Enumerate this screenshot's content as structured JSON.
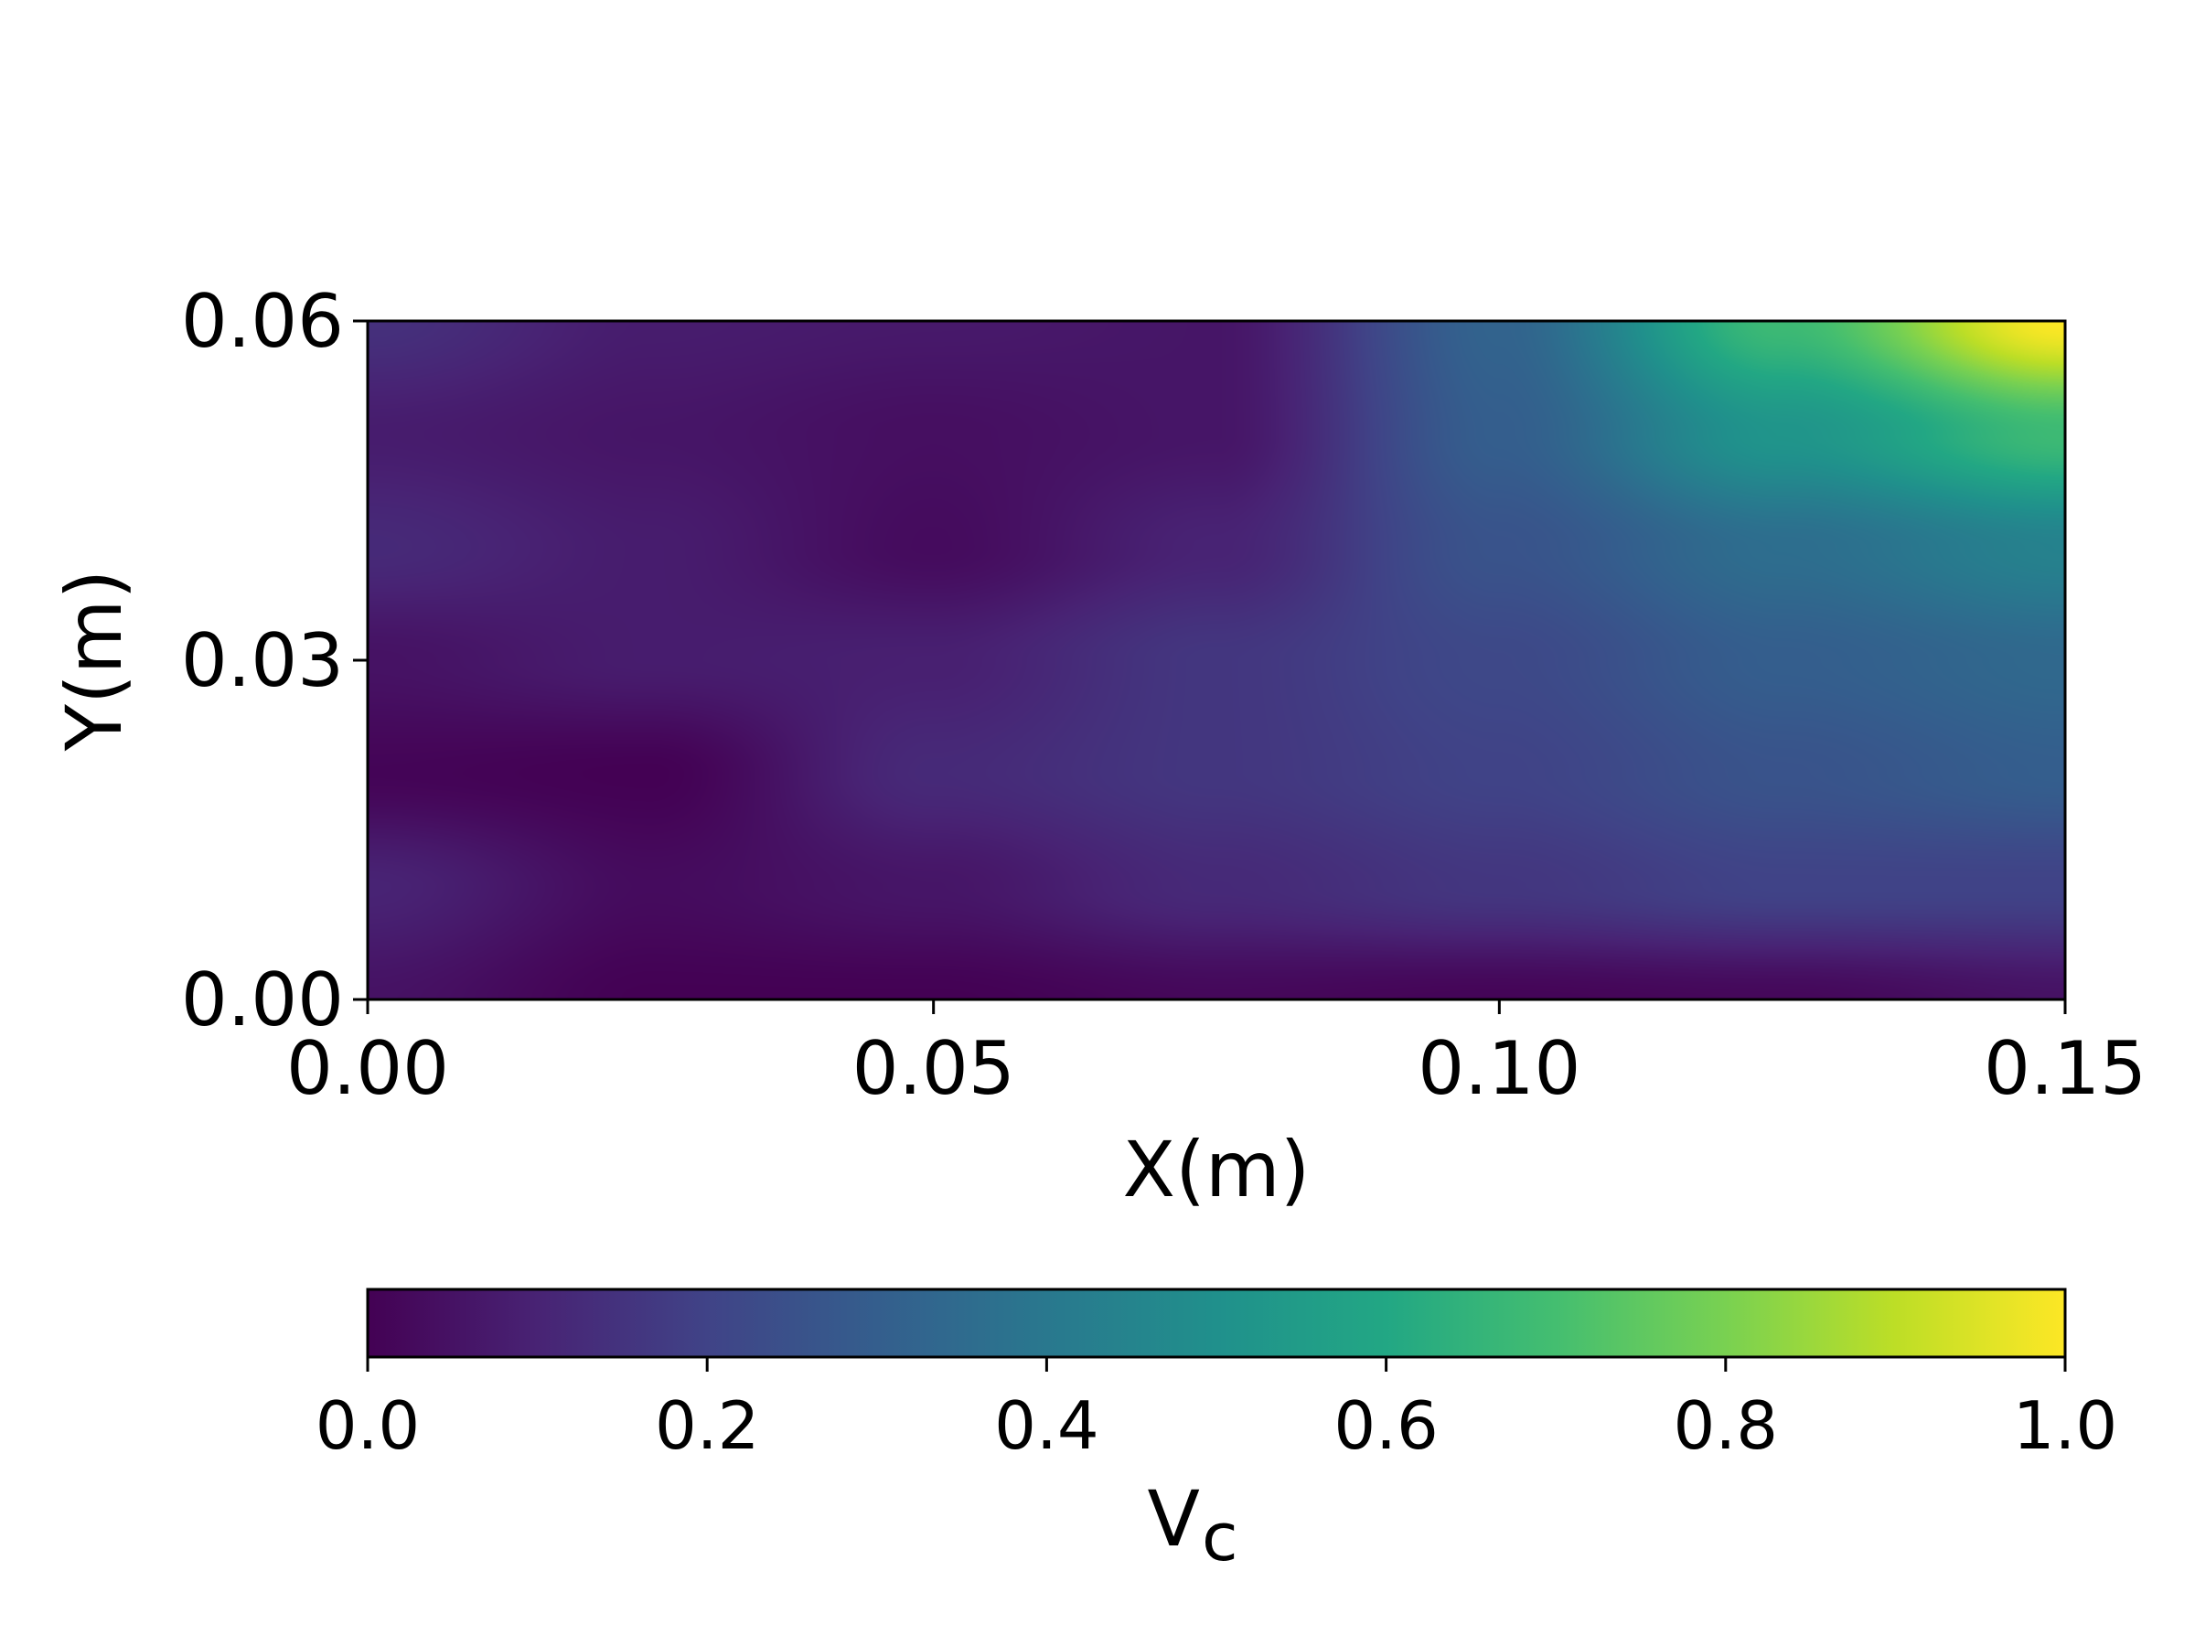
{
  "chart_data": {
    "type": "heatmap",
    "title": "",
    "xlabel": "X(m)",
    "ylabel": "Y(m)",
    "xlim": [
      0.0,
      0.15
    ],
    "ylim": [
      0.0,
      0.06
    ],
    "xticks": [
      0.0,
      0.05,
      0.1,
      0.15
    ],
    "xtick_labels": [
      "0.00",
      "0.05",
      "0.10",
      "0.15"
    ],
    "yticks": [
      0.0,
      0.03,
      0.06
    ],
    "ytick_labels": [
      "0.00",
      "0.03",
      "0.06"
    ],
    "colormap": "viridis",
    "colorbar": {
      "orientation": "horizontal",
      "placement": "bottom",
      "label_main": "V",
      "label_sub": "c",
      "range": [
        0.0,
        1.0
      ],
      "ticks": [
        0.0,
        0.2,
        0.4,
        0.6,
        0.8,
        1.0
      ],
      "tick_labels": [
        "0.0",
        "0.2",
        "0.4",
        "0.6",
        "0.8",
        "1.0"
      ]
    },
    "x": [
      0.0,
      0.025,
      0.05,
      0.075,
      0.1,
      0.125,
      0.15
    ],
    "y": [
      0.0,
      0.01,
      0.02,
      0.03,
      0.04,
      0.05,
      0.06
    ],
    "z": [
      [
        0.05,
        0.0,
        0.0,
        0.02,
        0.01,
        0.02,
        0.05
      ],
      [
        0.1,
        0.03,
        0.06,
        0.12,
        0.16,
        0.2,
        0.2
      ],
      [
        0.01,
        0.0,
        0.12,
        0.16,
        0.2,
        0.26,
        0.3
      ],
      [
        0.05,
        0.08,
        0.09,
        0.16,
        0.22,
        0.3,
        0.34
      ],
      [
        0.12,
        0.08,
        0.03,
        0.1,
        0.26,
        0.36,
        0.44
      ],
      [
        0.08,
        0.06,
        0.04,
        0.06,
        0.3,
        0.52,
        0.68
      ],
      [
        0.14,
        0.08,
        0.07,
        0.06,
        0.32,
        0.68,
        1.0
      ]
    ],
    "grid": false
  }
}
